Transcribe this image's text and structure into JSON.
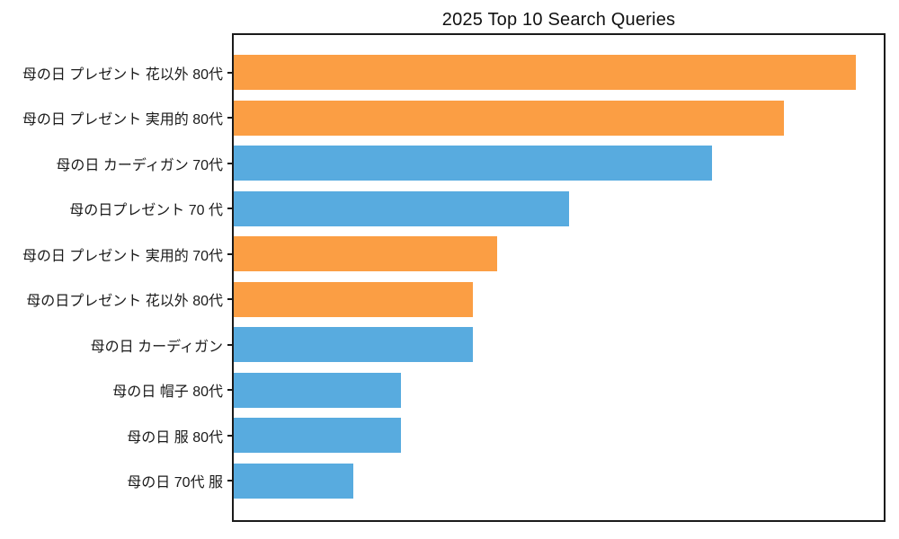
{
  "chart_data": {
    "type": "bar",
    "orientation": "horizontal",
    "title": "2025 Top 10 Search Queries",
    "categories": [
      "母の日 プレゼント 花以外 80代",
      "母の日 プレゼント 実用的 80代",
      "母の日 カーディガン 70代",
      "母の日プレゼント 70 代",
      "母の日 プレゼント 実用的 70代",
      "母の日プレゼント 花以外 80代",
      "母の日 カーディガン",
      "母の日 帽子 80代",
      "母の日 服 80代",
      "母の日 70代 服"
    ],
    "values": [
      1300,
      1150,
      1000,
      700,
      550,
      500,
      500,
      350,
      350,
      250
    ],
    "bar_colors": [
      "#FB9E44",
      "#FB9E44",
      "#58ABDF",
      "#58ABDF",
      "#FB9E44",
      "#FB9E44",
      "#58ABDF",
      "#58ABDF",
      "#58ABDF",
      "#58ABDF"
    ],
    "palette": {
      "orange": "#FB9E44",
      "blue": "#58ABDF"
    },
    "xlabel": "",
    "ylabel": "",
    "xlim": [
      0,
      1365
    ],
    "x_tick_labels": [],
    "grid": false,
    "legend": false,
    "frame_color": "#1a1a1a",
    "text_color": "#1a1a1a"
  }
}
